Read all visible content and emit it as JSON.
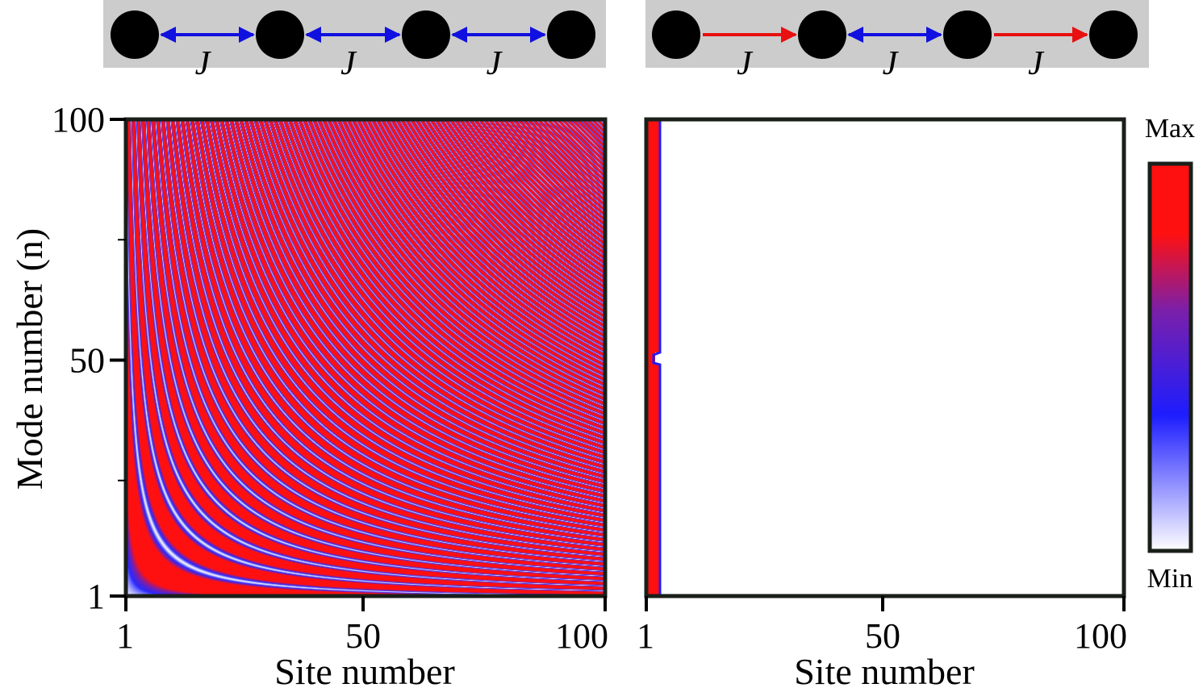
{
  "colors": {
    "min": "#ffffff",
    "low": "#1d1dff",
    "mid": "#7a1faa",
    "max": "#ff1010",
    "schematic_bg": "#cccccc",
    "site": "#000000",
    "reciprocal_coupling": "#1010e0",
    "nonreciprocal_coupling": "#e81010"
  },
  "schematics": [
    {
      "sites": 4,
      "links": [
        {
          "kind": "reciprocal",
          "label": "J"
        },
        {
          "kind": "reciprocal",
          "label": "J"
        },
        {
          "kind": "reciprocal",
          "label": "J"
        }
      ]
    },
    {
      "sites": 4,
      "links": [
        {
          "kind": "nonreciprocal",
          "label": "J"
        },
        {
          "kind": "reciprocal",
          "label": "J"
        },
        {
          "kind": "nonreciprocal",
          "label": "J"
        }
      ]
    }
  ],
  "colorbar": {
    "max_label": "Max",
    "min_label": "Min"
  },
  "chart_data": [
    {
      "type": "heatmap",
      "panel": "left",
      "description_of_data": "mode profile intensity |psi_n(site)|^2, standing-wave pattern",
      "xlabel": "Site number",
      "ylabel": "Mode number (n)",
      "xlim": [
        1,
        100
      ],
      "ylim": [
        1,
        100
      ],
      "xticks": [
        1,
        50,
        100
      ],
      "yticks": [
        1,
        50,
        100
      ],
      "pattern": "extended"
    },
    {
      "type": "heatmap",
      "panel": "right",
      "xlabel": "Site number",
      "ylabel": "",
      "xlim": [
        1,
        100
      ],
      "ylim": [
        1,
        100
      ],
      "xticks": [
        1,
        50,
        100
      ],
      "yticks": [],
      "pattern": "edge-localized",
      "localized_sites": [
        1,
        3
      ]
    }
  ]
}
